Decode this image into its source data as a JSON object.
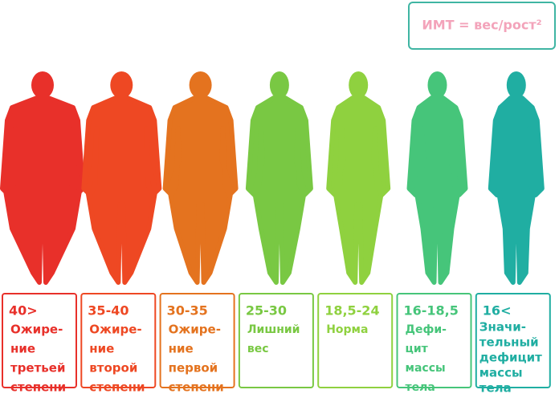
{
  "formula": "ИМТ = вес/рост²",
  "categories": [
    {
      "range": "40>",
      "label": [
        "Ожире-",
        "ние",
        "третьей",
        "степени"
      ],
      "color": "#e8302a"
    },
    {
      "range": "35-40",
      "label": [
        "Ожире-",
        "ние",
        "второй",
        "степени"
      ],
      "color": "#ee4823"
    },
    {
      "range": "30-35",
      "label": [
        "Ожире-",
        "ние",
        "первой",
        "степени"
      ],
      "color": "#e4731f"
    },
    {
      "range": "25-30",
      "label": [
        "Лишний",
        "вес"
      ],
      "color": "#79c843"
    },
    {
      "range": "18,5-24",
      "label": [
        "Норма"
      ],
      "color": "#8fd13f"
    },
    {
      "range": "16-18,5",
      "label": [
        "Дефи-",
        "цит",
        "массы",
        "тела"
      ],
      "color": "#46c57a"
    },
    {
      "range": "16<",
      "label": [
        "Значи-",
        "тельный",
        "дефицит",
        "массы",
        "тела"
      ],
      "color": "#20aea2"
    }
  ]
}
